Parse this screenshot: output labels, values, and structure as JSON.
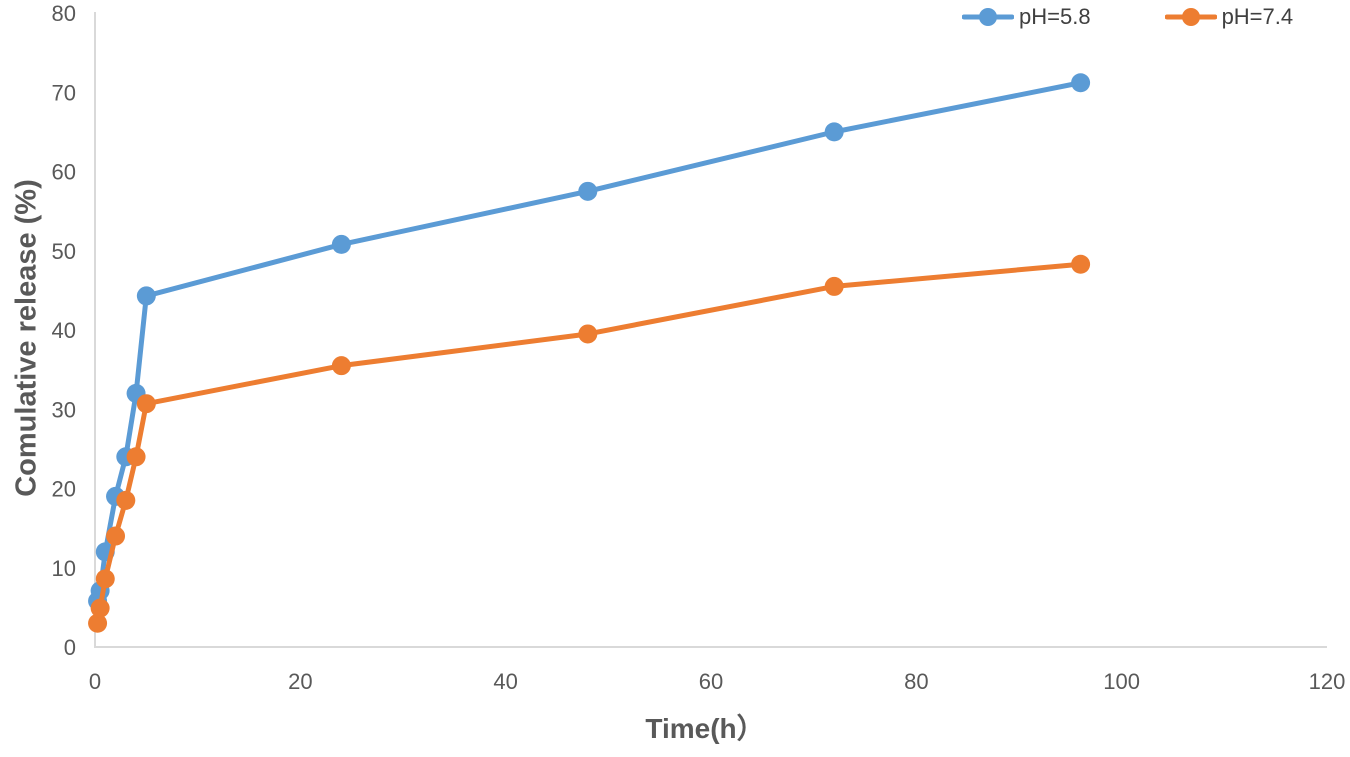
{
  "chart_data": {
    "type": "line",
    "title": "",
    "xlabel": "Time(h）",
    "ylabel": "Comulative release (%)",
    "x": [
      0.25,
      0.5,
      1,
      2,
      3,
      4,
      5,
      24,
      48,
      72,
      96
    ],
    "series": [
      {
        "name": "pH=5.8",
        "color": "#5B9BD5",
        "values": [
          5.8,
          7.1,
          12.0,
          19.0,
          24.0,
          32.0,
          44.3,
          50.8,
          57.5,
          65.0,
          71.2
        ]
      },
      {
        "name": "pH=7.4",
        "color": "#ED7D31",
        "values": [
          3.0,
          4.9,
          8.6,
          14.0,
          18.5,
          24.0,
          30.7,
          35.5,
          39.5,
          45.5,
          48.3
        ]
      }
    ],
    "xlim": [
      0,
      120
    ],
    "ylim": [
      0,
      80
    ],
    "x_ticks": [
      "0",
      "20",
      "40",
      "60",
      "80",
      "100",
      "120"
    ],
    "x_tick_values": [
      0,
      20,
      40,
      60,
      80,
      100,
      120
    ],
    "y_ticks": [
      "0",
      "10",
      "20",
      "30",
      "40",
      "50",
      "60",
      "70",
      "80"
    ],
    "y_tick_values": [
      0,
      10,
      20,
      30,
      40,
      50,
      60,
      70,
      80
    ],
    "grid": false,
    "legend_position": "top-right",
    "marker": "circle"
  },
  "styles": {
    "background": "#FFFFFF",
    "axis_line_color": "#D9D9D9",
    "tick_label_color": "#595959",
    "axis_title_color": "#595959",
    "legend_text_color": "#404040",
    "series_colors": [
      "#5B9BD5",
      "#ED7D31"
    ]
  }
}
